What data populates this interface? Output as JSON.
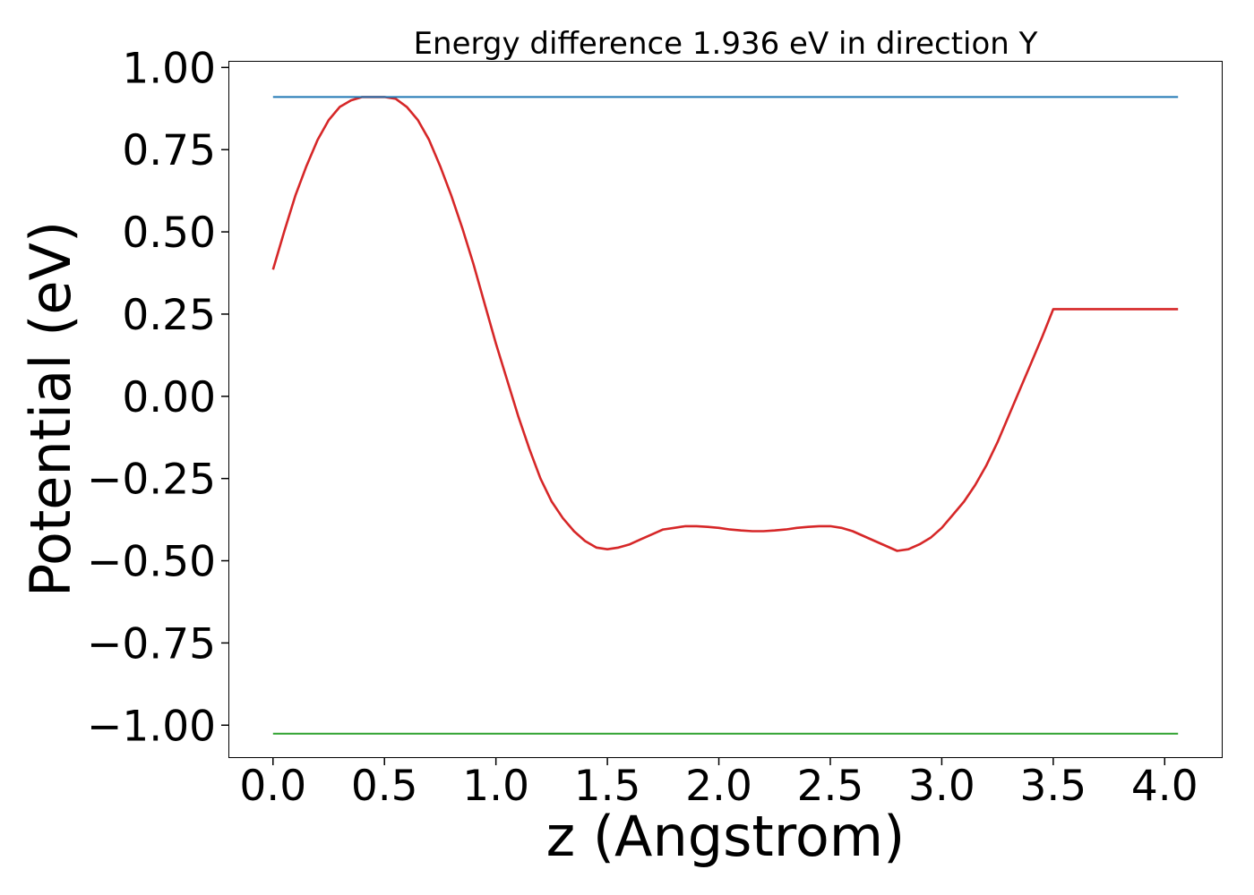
{
  "chart_data": {
    "type": "line",
    "title": "Energy difference 1.936 eV in direction Y",
    "xlabel": "z (Angstrom)",
    "ylabel": "Potential (eV)",
    "xlim": [
      -0.2,
      4.26
    ],
    "ylim": [
      -1.1,
      1.02
    ],
    "xticks": [
      {
        "value": 0.0,
        "label": "0.0"
      },
      {
        "value": 0.5,
        "label": "0.5"
      },
      {
        "value": 1.0,
        "label": "1.0"
      },
      {
        "value": 1.5,
        "label": "1.5"
      },
      {
        "value": 2.0,
        "label": "2.0"
      },
      {
        "value": 2.5,
        "label": "2.5"
      },
      {
        "value": 3.0,
        "label": "3.0"
      },
      {
        "value": 3.5,
        "label": "3.5"
      },
      {
        "value": 4.0,
        "label": "4.0"
      }
    ],
    "yticks": [
      {
        "value": 1.0,
        "label": "1.00"
      },
      {
        "value": 0.75,
        "label": "0.75"
      },
      {
        "value": 0.5,
        "label": "0.50"
      },
      {
        "value": 0.25,
        "label": "0.25"
      },
      {
        "value": 0.0,
        "label": "0.00"
      },
      {
        "value": -0.25,
        "label": "−0.25"
      },
      {
        "value": -0.5,
        "label": "−0.50"
      },
      {
        "value": -0.75,
        "label": "−0.75"
      },
      {
        "value": -1.0,
        "label": "−1.00"
      }
    ],
    "grid": false,
    "series": [
      {
        "color": "#d62728",
        "x": [
          0.0,
          0.05,
          0.1,
          0.15,
          0.2,
          0.25,
          0.3,
          0.35,
          0.4,
          0.45,
          0.5,
          0.55,
          0.6,
          0.65,
          0.7,
          0.75,
          0.8,
          0.85,
          0.9,
          0.95,
          1.0,
          1.05,
          1.1,
          1.15,
          1.2,
          1.25,
          1.3,
          1.35,
          1.4,
          1.45,
          1.5,
          1.55,
          1.6,
          1.65,
          1.7,
          1.75,
          1.8,
          1.85,
          1.9,
          1.95,
          2.0,
          2.05,
          2.1,
          2.15,
          2.2,
          2.25,
          2.3,
          2.35,
          2.4,
          2.45,
          2.5,
          2.55,
          2.6,
          2.65,
          2.7,
          2.75,
          2.8,
          2.85,
          2.9,
          2.95,
          3.0,
          3.05,
          3.1,
          3.15,
          3.2,
          3.25,
          3.3,
          3.35,
          3.4,
          3.45,
          3.5,
          3.55,
          3.6,
          3.65,
          3.7,
          3.75,
          3.8,
          3.85,
          3.9,
          3.95,
          4.0,
          4.06
        ],
        "y": [
          0.385,
          0.5,
          0.61,
          0.7,
          0.78,
          0.84,
          0.88,
          0.9,
          0.91,
          0.91,
          0.91,
          0.905,
          0.88,
          0.84,
          0.78,
          0.7,
          0.61,
          0.51,
          0.4,
          0.28,
          0.16,
          0.05,
          -0.06,
          -0.16,
          -0.25,
          -0.32,
          -0.37,
          -0.41,
          -0.44,
          -0.46,
          -0.465,
          -0.46,
          -0.45,
          -0.435,
          -0.42,
          -0.405,
          -0.4,
          -0.395,
          -0.395,
          -0.397,
          -0.4,
          -0.405,
          -0.408,
          -0.41,
          -0.41,
          -0.408,
          -0.405,
          -0.4,
          -0.397,
          -0.395,
          -0.395,
          -0.4,
          -0.41,
          -0.425,
          -0.44,
          -0.455,
          -0.47,
          -0.465,
          -0.45,
          -0.43,
          -0.4,
          -0.36,
          -0.32,
          -0.27,
          -0.21,
          -0.14,
          -0.06,
          0.02,
          0.1,
          0.18,
          0.265,
          0.265,
          0.265,
          0.265,
          0.265,
          0.265,
          0.265,
          0.265,
          0.265,
          0.265,
          0.265,
          0.265
        ]
      },
      {
        "color": "#1f77b4",
        "x": [
          0.0,
          4.06
        ],
        "y": [
          0.91,
          0.91
        ]
      },
      {
        "color": "#2ca02c",
        "x": [
          0.0,
          4.06
        ],
        "y": [
          -1.026,
          -1.026
        ]
      }
    ]
  }
}
